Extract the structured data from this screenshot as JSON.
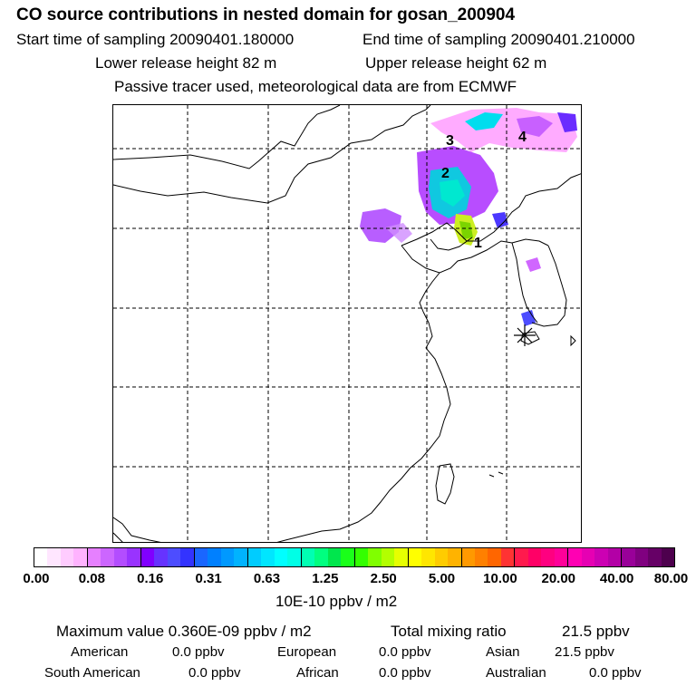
{
  "title": "CO  source contributions in nested domain for gosan_200904",
  "sampling": {
    "start_label": "Start time of sampling 20090401.180000",
    "end_label": "End time of sampling 20090401.210000"
  },
  "release": {
    "lower_label": "Lower release height   82 m",
    "upper_label": "Upper release height   62 m"
  },
  "note": "Passive tracer used, meteorological data are from ECMWF",
  "map": {
    "region_labels": [
      "1",
      "2",
      "3",
      "4"
    ],
    "station_marker": "asterisk-icon"
  },
  "colorbar": {
    "tick_labels": [
      "0.00",
      "0.08",
      "0.16",
      "0.31",
      "0.63",
      "1.25",
      "2.50",
      "5.00",
      "10.00",
      "20.00",
      "40.00",
      "80.00"
    ],
    "colors": [
      "#ffffff",
      "#ffe6ff",
      "#ffccff",
      "#ffb3ff",
      "#e680ff",
      "#cc66ff",
      "#b34dff",
      "#9933ff",
      "#8000ff",
      "#6633ff",
      "#4d4dff",
      "#3333ff",
      "#1a66ff",
      "#0080ff",
      "#0099ff",
      "#00b3ff",
      "#00ccff",
      "#00e6ff",
      "#00ffff",
      "#00ffe6",
      "#00ffb3",
      "#00ff80",
      "#00e64d",
      "#1aff1a",
      "#33ff00",
      "#80ff00",
      "#b3ff00",
      "#e6ff00",
      "#ffff00",
      "#ffe600",
      "#ffcc00",
      "#ffb300",
      "#ff9900",
      "#ff8000",
      "#ff6600",
      "#ff3333",
      "#ff1a4d",
      "#ff0066",
      "#ff0080",
      "#ff0099",
      "#ff00b3",
      "#e600b3",
      "#cc00b3",
      "#b300a6",
      "#990099",
      "#800080",
      "#660066",
      "#4d004d"
    ],
    "unit": "10E-10 ppbv / m2"
  },
  "stats": {
    "max_label": "Maximum value  0.360E-09 ppbv / m2",
    "total_label": "Total mixing ratio",
    "total_value": "21.5 ppbv",
    "regions": [
      {
        "name": "American",
        "value": "0.0 ppbv"
      },
      {
        "name": "European",
        "value": "0.0 ppbv"
      },
      {
        "name": "Asian",
        "value": "21.5 ppbv"
      },
      {
        "name": "South American",
        "value": "0.0 ppbv"
      },
      {
        "name": "African",
        "value": "0.0 ppbv"
      },
      {
        "name": "Australian",
        "value": "0.0 ppbv"
      }
    ]
  }
}
